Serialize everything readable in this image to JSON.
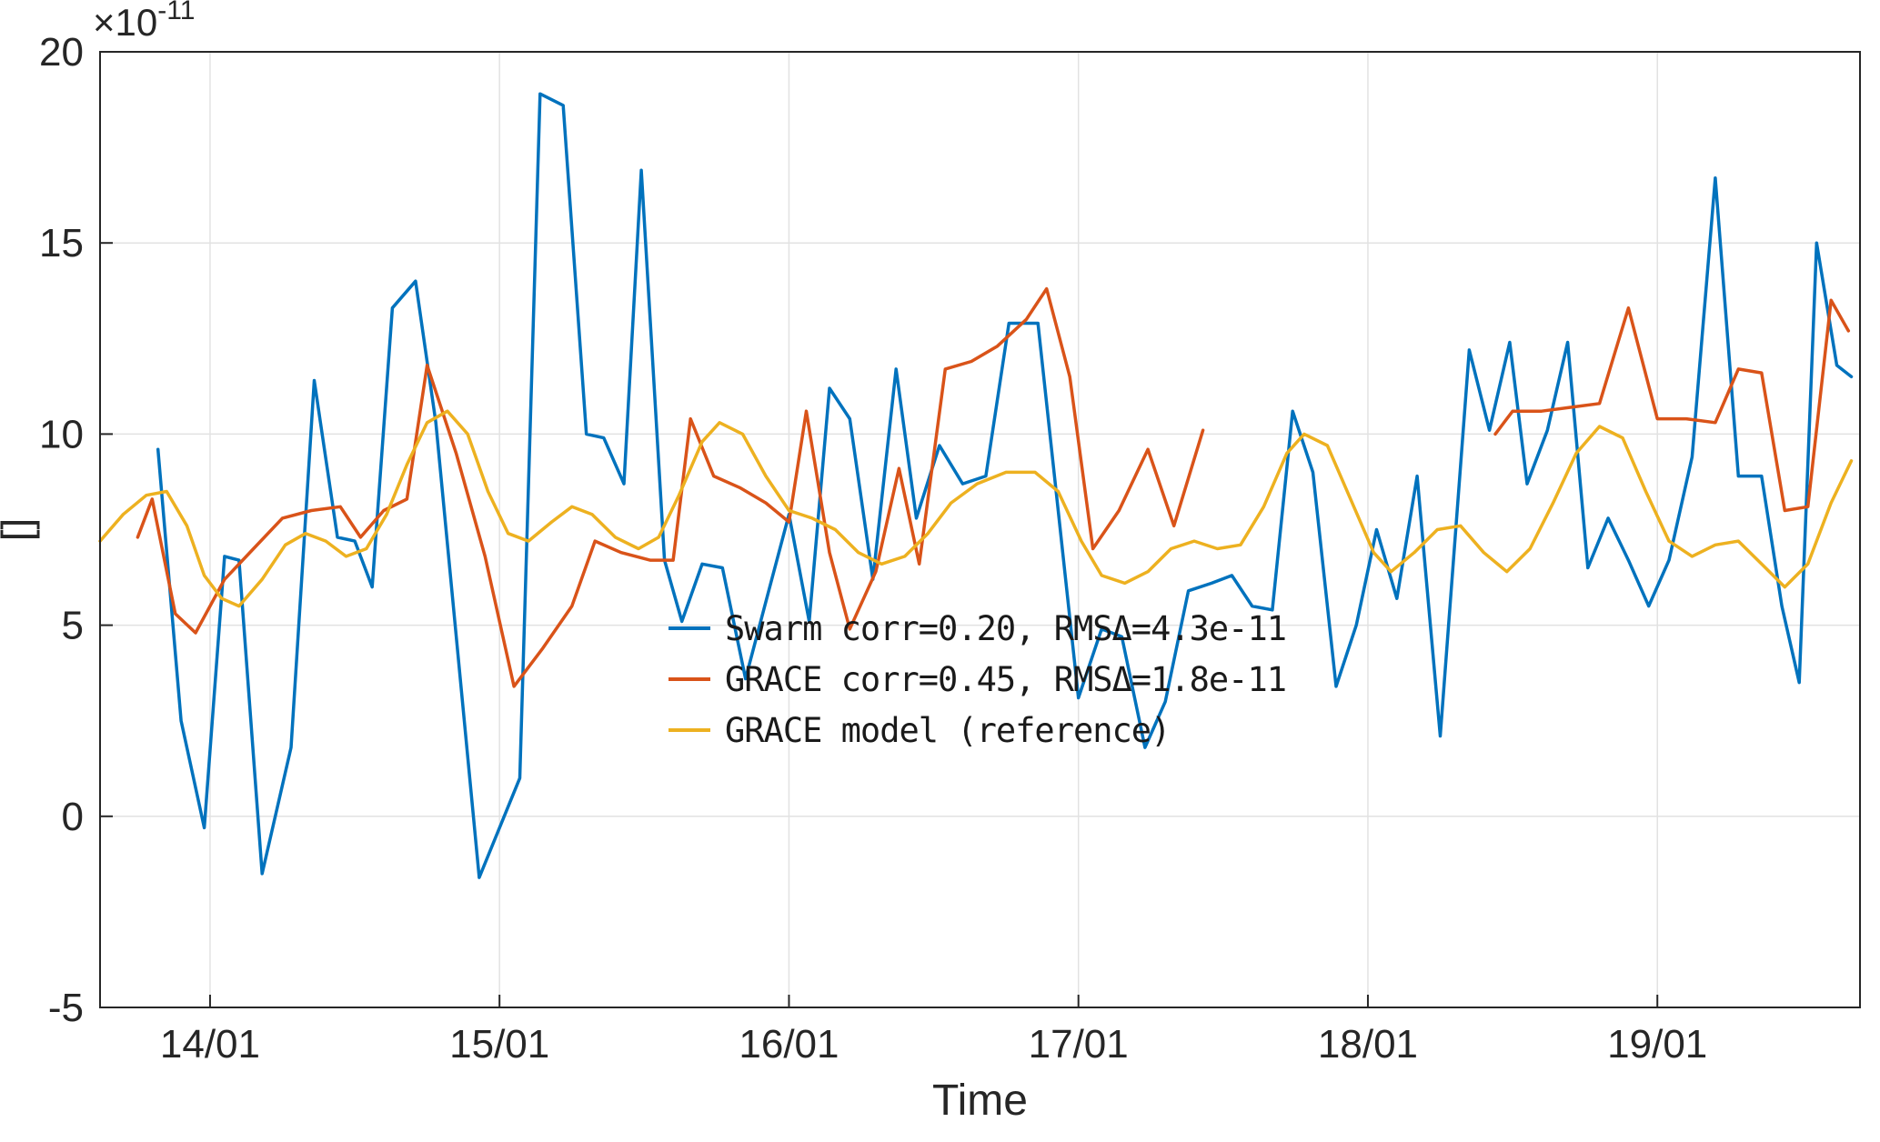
{
  "figure": {
    "background": "#ffffff",
    "axis_color": "#262626",
    "grid_color": "#e2e2e2"
  },
  "chart_data": {
    "type": "line",
    "title": "",
    "xlabel": "Time",
    "ylabel": "[]",
    "y_exponent_base": "×10",
    "y_exponent_power": "-11",
    "y_scale": "1e-11",
    "xlim": [
      13.62,
      19.7
    ],
    "ylim": [
      -5,
      20
    ],
    "grid": true,
    "legend_position": "inside-bottom-right",
    "x_ticks": [
      {
        "value": 14,
        "label": "14/01"
      },
      {
        "value": 15,
        "label": "15/01"
      },
      {
        "value": 16,
        "label": "16/01"
      },
      {
        "value": 17,
        "label": "17/01"
      },
      {
        "value": 18,
        "label": "18/01"
      },
      {
        "value": 19,
        "label": "19/01"
      }
    ],
    "y_ticks": [
      {
        "value": -5,
        "label": "-5"
      },
      {
        "value": 0,
        "label": "0"
      },
      {
        "value": 5,
        "label": "5"
      },
      {
        "value": 10,
        "label": "10"
      },
      {
        "value": 15,
        "label": "15"
      },
      {
        "value": 20,
        "label": "20"
      }
    ],
    "series": [
      {
        "name": "Swarm corr=0.20, RMSΔ=4.3e-11",
        "color": "#0072BD",
        "points": [
          [
            13.82,
            9.6
          ],
          [
            13.9,
            2.5
          ],
          [
            13.98,
            -0.3
          ],
          [
            14.05,
            6.8
          ],
          [
            14.1,
            6.7
          ],
          [
            14.18,
            -1.5
          ],
          [
            14.28,
            1.8
          ],
          [
            14.36,
            11.4
          ],
          [
            14.44,
            7.3
          ],
          [
            14.5,
            7.2
          ],
          [
            14.56,
            6.0
          ],
          [
            14.63,
            13.3
          ],
          [
            14.71,
            14.0
          ],
          [
            14.78,
            10.3
          ],
          [
            14.93,
            -1.6
          ],
          [
            15.07,
            1.0
          ],
          [
            15.14,
            18.9
          ],
          [
            15.22,
            18.6
          ],
          [
            15.3,
            10.0
          ],
          [
            15.36,
            9.9
          ],
          [
            15.43,
            8.7
          ],
          [
            15.49,
            16.9
          ],
          [
            15.57,
            6.7
          ],
          [
            15.63,
            5.1
          ],
          [
            15.7,
            6.6
          ],
          [
            15.77,
            6.5
          ],
          [
            15.85,
            3.6
          ],
          [
            15.93,
            5.9
          ],
          [
            16.0,
            7.9
          ],
          [
            16.07,
            5.1
          ],
          [
            16.14,
            11.2
          ],
          [
            16.21,
            10.4
          ],
          [
            16.29,
            6.2
          ],
          [
            16.37,
            11.7
          ],
          [
            16.44,
            7.8
          ],
          [
            16.52,
            9.7
          ],
          [
            16.6,
            8.7
          ],
          [
            16.68,
            8.9
          ],
          [
            16.76,
            12.9
          ],
          [
            16.86,
            12.9
          ],
          [
            17.0,
            3.1
          ],
          [
            17.08,
            4.9
          ],
          [
            17.15,
            4.7
          ],
          [
            17.23,
            1.8
          ],
          [
            17.3,
            3.0
          ],
          [
            17.38,
            5.9
          ],
          [
            17.46,
            6.1
          ],
          [
            17.53,
            6.3
          ],
          [
            17.6,
            5.5
          ],
          [
            17.67,
            5.4
          ],
          [
            17.74,
            10.6
          ],
          [
            17.81,
            9.0
          ],
          [
            17.89,
            3.4
          ],
          [
            17.96,
            5.0
          ],
          [
            18.03,
            7.5
          ],
          [
            18.1,
            5.7
          ],
          [
            18.17,
            8.9
          ],
          [
            18.25,
            2.1
          ],
          [
            18.35,
            12.2
          ],
          [
            18.42,
            10.1
          ],
          [
            18.49,
            12.4
          ],
          [
            18.55,
            8.7
          ],
          [
            18.62,
            10.1
          ],
          [
            18.69,
            12.4
          ],
          [
            18.76,
            6.5
          ],
          [
            18.83,
            7.8
          ],
          [
            18.9,
            6.7
          ],
          [
            18.97,
            5.5
          ],
          [
            19.04,
            6.7
          ],
          [
            19.12,
            9.4
          ],
          [
            19.2,
            16.7
          ],
          [
            19.28,
            8.9
          ],
          [
            19.36,
            8.9
          ],
          [
            19.43,
            5.5
          ],
          [
            19.49,
            3.5
          ],
          [
            19.55,
            15.0
          ],
          [
            19.62,
            11.8
          ],
          [
            19.67,
            11.5
          ]
        ]
      },
      {
        "name": "GRACE corr=0.45, RMSΔ=1.8e-11",
        "color": "#D95319",
        "points": [
          [
            13.75,
            7.3
          ],
          [
            13.8,
            8.3
          ],
          [
            13.88,
            5.3
          ],
          [
            13.95,
            4.8
          ],
          [
            14.05,
            6.2
          ],
          [
            14.15,
            7.0
          ],
          [
            14.25,
            7.8
          ],
          [
            14.35,
            8.0
          ],
          [
            14.45,
            8.1
          ],
          [
            14.52,
            7.3
          ],
          [
            14.6,
            8.0
          ],
          [
            14.68,
            8.3
          ],
          [
            14.75,
            11.8
          ],
          [
            14.85,
            9.5
          ],
          [
            14.95,
            6.8
          ],
          [
            15.05,
            3.4
          ],
          [
            15.15,
            4.4
          ],
          [
            15.25,
            5.5
          ],
          [
            15.33,
            7.2
          ],
          [
            15.42,
            6.9
          ],
          [
            15.52,
            6.7
          ],
          [
            15.6,
            6.7
          ],
          [
            15.66,
            10.4
          ],
          [
            15.74,
            8.9
          ],
          [
            15.83,
            8.6
          ],
          [
            15.92,
            8.2
          ],
          [
            16.0,
            7.7
          ],
          [
            16.06,
            10.6
          ],
          [
            16.14,
            6.9
          ],
          [
            16.21,
            4.9
          ],
          [
            16.3,
            6.4
          ],
          [
            16.38,
            9.1
          ],
          [
            16.45,
            6.6
          ],
          [
            16.54,
            11.7
          ],
          [
            16.63,
            11.9
          ],
          [
            16.72,
            12.3
          ],
          [
            16.82,
            13.0
          ],
          [
            16.89,
            13.8
          ],
          [
            16.97,
            11.5
          ],
          [
            17.05,
            7.0
          ],
          [
            17.14,
            8.0
          ],
          [
            17.24,
            9.6
          ],
          [
            17.33,
            7.6
          ],
          [
            17.43,
            10.1
          ],
          null,
          [
            18.44,
            10.0
          ],
          [
            18.5,
            10.6
          ],
          [
            18.6,
            10.6
          ],
          [
            18.7,
            10.7
          ],
          [
            18.8,
            10.8
          ],
          [
            18.9,
            13.3
          ],
          [
            19.0,
            10.4
          ],
          [
            19.1,
            10.4
          ],
          [
            19.2,
            10.3
          ],
          [
            19.28,
            11.7
          ],
          [
            19.36,
            11.6
          ],
          [
            19.44,
            8.0
          ],
          [
            19.52,
            8.1
          ],
          [
            19.6,
            13.5
          ],
          [
            19.66,
            12.7
          ]
        ]
      },
      {
        "name": "GRACE model (reference)",
        "color": "#EDB120",
        "points": [
          [
            13.62,
            7.2
          ],
          [
            13.7,
            7.9
          ],
          [
            13.78,
            8.4
          ],
          [
            13.85,
            8.5
          ],
          [
            13.92,
            7.6
          ],
          [
            13.98,
            6.3
          ],
          [
            14.04,
            5.7
          ],
          [
            14.1,
            5.5
          ],
          [
            14.18,
            6.2
          ],
          [
            14.26,
            7.1
          ],
          [
            14.33,
            7.4
          ],
          [
            14.4,
            7.2
          ],
          [
            14.47,
            6.8
          ],
          [
            14.54,
            7.0
          ],
          [
            14.61,
            7.9
          ],
          [
            14.68,
            9.2
          ],
          [
            14.75,
            10.3
          ],
          [
            14.82,
            10.6
          ],
          [
            14.89,
            10.0
          ],
          [
            14.96,
            8.5
          ],
          [
            15.03,
            7.4
          ],
          [
            15.1,
            7.2
          ],
          [
            15.18,
            7.7
          ],
          [
            15.25,
            8.1
          ],
          [
            15.32,
            7.9
          ],
          [
            15.4,
            7.3
          ],
          [
            15.48,
            7.0
          ],
          [
            15.55,
            7.3
          ],
          [
            15.62,
            8.4
          ],
          [
            15.7,
            9.8
          ],
          [
            15.76,
            10.3
          ],
          [
            15.84,
            10.0
          ],
          [
            15.92,
            8.9
          ],
          [
            16.0,
            8.0
          ],
          [
            16.08,
            7.8
          ],
          [
            16.16,
            7.5
          ],
          [
            16.24,
            6.9
          ],
          [
            16.32,
            6.6
          ],
          [
            16.4,
            6.8
          ],
          [
            16.48,
            7.4
          ],
          [
            16.56,
            8.2
          ],
          [
            16.65,
            8.7
          ],
          [
            16.75,
            9.0
          ],
          [
            16.85,
            9.0
          ],
          [
            16.93,
            8.5
          ],
          [
            17.01,
            7.2
          ],
          [
            17.08,
            6.3
          ],
          [
            17.16,
            6.1
          ],
          [
            17.24,
            6.4
          ],
          [
            17.32,
            7.0
          ],
          [
            17.4,
            7.2
          ],
          [
            17.48,
            7.0
          ],
          [
            17.56,
            7.1
          ],
          [
            17.64,
            8.1
          ],
          [
            17.72,
            9.5
          ],
          [
            17.78,
            10.0
          ],
          [
            17.86,
            9.7
          ],
          [
            17.94,
            8.3
          ],
          [
            18.02,
            6.9
          ],
          [
            18.08,
            6.4
          ],
          [
            18.16,
            6.9
          ],
          [
            18.24,
            7.5
          ],
          [
            18.32,
            7.6
          ],
          [
            18.4,
            6.9
          ],
          [
            18.48,
            6.4
          ],
          [
            18.56,
            7.0
          ],
          [
            18.64,
            8.2
          ],
          [
            18.72,
            9.5
          ],
          [
            18.8,
            10.2
          ],
          [
            18.88,
            9.9
          ],
          [
            18.96,
            8.5
          ],
          [
            19.04,
            7.2
          ],
          [
            19.12,
            6.8
          ],
          [
            19.2,
            7.1
          ],
          [
            19.28,
            7.2
          ],
          [
            19.36,
            6.6
          ],
          [
            19.44,
            6.0
          ],
          [
            19.52,
            6.6
          ],
          [
            19.6,
            8.2
          ],
          [
            19.67,
            9.3
          ]
        ]
      }
    ]
  }
}
